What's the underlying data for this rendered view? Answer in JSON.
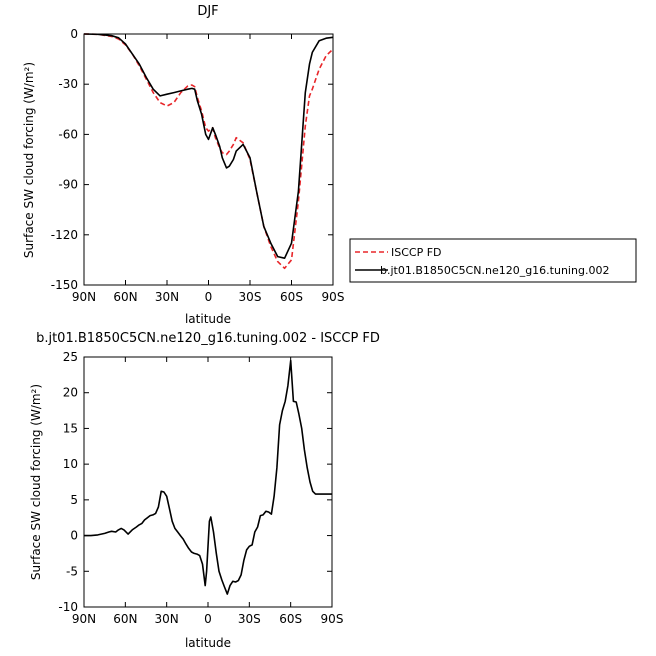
{
  "chart_data": [
    {
      "type": "line",
      "title": "DJF",
      "xlabel": "latitude",
      "ylabel": "Surface SW cloud forcing (W/m²)",
      "ylim": [
        -150,
        0
      ],
      "xlim": [
        -90,
        90
      ],
      "x_ticks": [
        -90,
        -60,
        -30,
        0,
        30,
        60,
        90
      ],
      "x_tick_labels": [
        "90N",
        "60N",
        "30N",
        "0",
        "30S",
        "60S",
        "90S"
      ],
      "y_ticks": [
        0,
        -30,
        -60,
        -90,
        -120,
        -150
      ],
      "y_tick_labels": [
        "0",
        "-30",
        "-60",
        "-90",
        "-120",
        "-150"
      ],
      "legend_position": "right",
      "series": [
        {
          "name": "ISCCP FD",
          "color": "#e8262a",
          "dash": "dashed",
          "x": [
            -90,
            -80,
            -70,
            -65,
            -60,
            -55,
            -50,
            -45,
            -40,
            -35,
            -30,
            -25,
            -20,
            -15,
            -12,
            -10,
            -8,
            -5,
            -2,
            0,
            3,
            5,
            8,
            10,
            13,
            15,
            18,
            20,
            25,
            30,
            35,
            40,
            45,
            50,
            55,
            60,
            65,
            70,
            73,
            75,
            80,
            85,
            90
          ],
          "y": [
            0,
            -0.2,
            -1.5,
            -3,
            -6.5,
            -12,
            -19,
            -27,
            -35,
            -41,
            -43,
            -41,
            -35,
            -31,
            -30.5,
            -31.5,
            -38,
            -46,
            -56,
            -58,
            -56,
            -62,
            -68,
            -71,
            -72,
            -70,
            -66,
            -62,
            -65,
            -75,
            -95,
            -115,
            -127,
            -136,
            -140,
            -135,
            -100,
            -55,
            -37,
            -33,
            -21,
            -13,
            -9
          ]
        },
        {
          "name": "b.jt01.B1850C5CN.ne120_g16.tuning.002",
          "color": "#000000",
          "dash": "solid",
          "x": [
            -90,
            -80,
            -70,
            -65,
            -60,
            -55,
            -50,
            -45,
            -40,
            -35,
            -30,
            -25,
            -20,
            -15,
            -12,
            -10,
            -8,
            -5,
            -2,
            0,
            3,
            5,
            8,
            10,
            13,
            15,
            18,
            20,
            25,
            30,
            35,
            40,
            45,
            50,
            55,
            60,
            65,
            70,
            73,
            75,
            80,
            85,
            90
          ],
          "y": [
            0,
            -0.2,
            -1.0,
            -2.3,
            -6.0,
            -12,
            -18,
            -26,
            -33,
            -37,
            -36,
            -35,
            -34,
            -33,
            -32.5,
            -33,
            -40,
            -48,
            -60,
            -63,
            -56,
            -60,
            -67,
            -74,
            -80,
            -79,
            -75,
            -70,
            -66,
            -74,
            -95,
            -115,
            -125,
            -133,
            -134,
            -125,
            -94,
            -35,
            -18,
            -11,
            -4,
            -2.5,
            -2
          ]
        }
      ]
    },
    {
      "type": "line",
      "title": "b.jt01.B1850C5CN.ne120_g16.tuning.002 - ISCCP FD",
      "xlabel": "latitude",
      "ylabel": "Surface SW cloud forcing (W/m²)",
      "ylim": [
        -10,
        25
      ],
      "xlim": [
        -90,
        90
      ],
      "x_ticks": [
        -90,
        -60,
        -30,
        0,
        30,
        60,
        90
      ],
      "x_tick_labels": [
        "90N",
        "60N",
        "30N",
        "0",
        "30S",
        "60S",
        "90S"
      ],
      "y_ticks": [
        25,
        20,
        15,
        10,
        5,
        0,
        -5,
        -10
      ],
      "y_tick_labels": [
        "25",
        "20",
        "15",
        "10",
        "5",
        "0",
        "-5",
        "-10"
      ],
      "series": [
        {
          "color": "#000000",
          "dash": "solid",
          "x": [
            -90,
            -85,
            -80,
            -75,
            -72,
            -70,
            -67,
            -65,
            -63,
            -61,
            -58,
            -55,
            -52,
            -50,
            -48,
            -46,
            -44,
            -42,
            -40,
            -38,
            -36,
            -34,
            -32,
            -30,
            -28,
            -26,
            -24,
            -22,
            -20,
            -18,
            -16,
            -14,
            -12,
            -10,
            -8,
            -6,
            -4,
            -2,
            -1,
            0,
            1,
            2,
            4,
            6,
            8,
            10,
            12,
            14,
            16,
            18,
            20,
            22,
            24,
            26,
            28,
            30,
            32,
            34,
            36,
            38,
            40,
            42,
            44,
            46,
            48,
            50,
            52,
            54,
            56,
            58,
            60,
            62,
            64,
            66,
            68,
            70,
            72,
            74,
            76,
            78,
            80,
            82,
            84,
            86,
            88,
            90
          ],
          "y": [
            0,
            0,
            0.1,
            0.3,
            0.5,
            0.6,
            0.5,
            0.8,
            1.0,
            0.8,
            0.2,
            0.8,
            1.2,
            1.5,
            1.7,
            2.2,
            2.5,
            2.8,
            2.9,
            3.1,
            4.0,
            6.2,
            6.1,
            5.5,
            3.8,
            2.0,
            1.0,
            0.5,
            0,
            -0.5,
            -1.2,
            -1.8,
            -2.3,
            -2.5,
            -2.6,
            -2.8,
            -4.0,
            -7.0,
            -5.0,
            -1.5,
            2.0,
            2.6,
            0.5,
            -2.5,
            -5.0,
            -6.2,
            -7.2,
            -8.2,
            -7.0,
            -6.4,
            -6.5,
            -6.3,
            -5.5,
            -3.5,
            -2.0,
            -1.5,
            -1.3,
            0.5,
            1.2,
            2.8,
            2.9,
            3.4,
            3.3,
            3.0,
            5.5,
            9.5,
            15.5,
            17.5,
            18.8,
            21.0,
            24.5,
            18.8,
            18.7,
            17.0,
            15.0,
            12.0,
            9.5,
            7.5,
            6.2,
            5.8,
            5.8,
            5.8,
            5.8,
            5.8,
            5.8,
            5.8
          ]
        }
      ]
    }
  ]
}
